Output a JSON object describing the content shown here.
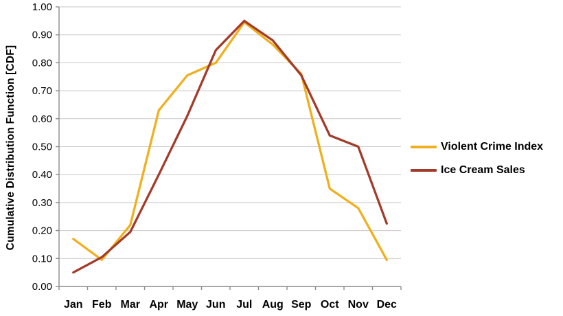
{
  "chart_data": {
    "type": "line",
    "title": "",
    "xlabel": "",
    "ylabel": "Cumulative Distribution Function [CDF]",
    "categories": [
      "Jan",
      "Feb",
      "Mar",
      "Apr",
      "May",
      "Jun",
      "Jul",
      "Aug",
      "Sep",
      "Oct",
      "Nov",
      "Dec"
    ],
    "ylim": [
      0.0,
      1.0
    ],
    "ytick_step": 0.1,
    "ytick_labels": [
      "0.00",
      "0.10",
      "0.20",
      "0.30",
      "0.40",
      "0.50",
      "0.60",
      "0.70",
      "0.80",
      "0.90",
      "1.00"
    ],
    "grid": "horizontal",
    "legend_position": "right",
    "series": [
      {
        "name": "Violent Crime Index",
        "color": "#F0B01E",
        "values": [
          0.17,
          0.095,
          0.22,
          0.63,
          0.755,
          0.8,
          0.945,
          0.865,
          0.76,
          0.35,
          0.28,
          0.095
        ]
      },
      {
        "name": "Ice Cream Sales",
        "color": "#A33B2B",
        "values": [
          0.05,
          0.105,
          0.195,
          0.4,
          0.61,
          0.845,
          0.95,
          0.88,
          0.755,
          0.54,
          0.5,
          0.225
        ]
      }
    ],
    "axis_color": "#8C8C8C",
    "grid_color": "#C9C9C9",
    "text_color": "#000000"
  }
}
